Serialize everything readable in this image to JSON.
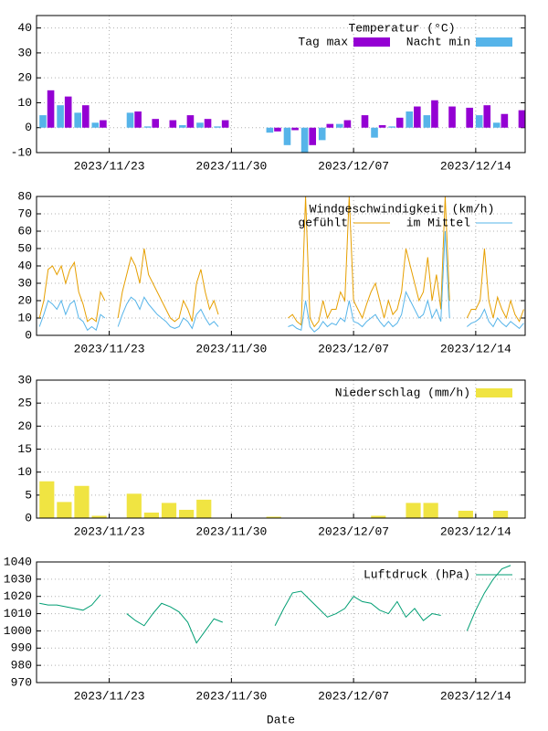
{
  "chart_data": [
    {
      "type": "bar",
      "title": "Temperatur (°C)",
      "x": [
        "2023/11/19",
        "2023/11/20",
        "2023/11/21",
        "2023/11/22",
        "2023/11/23",
        "2023/11/24",
        "2023/11/25",
        "2023/11/26",
        "2023/11/27",
        "2023/11/28",
        "2023/11/29",
        "2023/11/30",
        "2023/12/01",
        "2023/12/02",
        "2023/12/03",
        "2023/12/04",
        "2023/12/05",
        "2023/12/06",
        "2023/12/07",
        "2023/12/08",
        "2023/12/09",
        "2023/12/10",
        "2023/12/11",
        "2023/12/12",
        "2023/12/13",
        "2023/12/14",
        "2023/12/15",
        "2023/12/16"
      ],
      "series": [
        {
          "name": "Tag max",
          "color": "#9400d3",
          "values": [
            15,
            12.5,
            9,
            3,
            null,
            6.5,
            3.5,
            3,
            5,
            3.5,
            3,
            null,
            null,
            -1.5,
            -1,
            -7,
            1.5,
            3,
            5,
            1,
            4,
            8.5,
            11,
            8.5,
            8,
            9,
            5.5,
            7
          ]
        },
        {
          "name": "Nacht min",
          "color": "#56b4e9",
          "values": [
            5,
            9,
            6,
            2,
            null,
            6,
            0.5,
            0,
            1,
            2,
            0.5,
            null,
            null,
            -2,
            -7,
            -10,
            -5,
            1.5,
            0,
            -4,
            0.5,
            6.5,
            5,
            null,
            null,
            5,
            2,
            null
          ]
        }
      ],
      "xlim": [
        "2023/11/18 20:00",
        "2023/12/16 20:00"
      ],
      "xticks": [
        "2023/11/23",
        "2023/11/30",
        "2023/12/07",
        "2023/12/14"
      ],
      "ylim": [
        -10,
        45
      ],
      "yticks": [
        -10,
        0,
        10,
        20,
        30,
        40
      ],
      "grid": true,
      "legend": "top-right"
    },
    {
      "type": "line",
      "title": "Windgeschwindigkeit (km/h)",
      "x": [
        "2023/11/19 00:00",
        "2023/11/19 06:00",
        "2023/11/19 12:00",
        "2023/11/19 18:00",
        "2023/11/20 00:00",
        "2023/11/20 06:00",
        "2023/11/20 12:00",
        "2023/11/20 18:00",
        "2023/11/21 00:00",
        "2023/11/21 06:00",
        "2023/11/21 12:00",
        "2023/11/21 18:00",
        "2023/11/22 00:00",
        "2023/11/22 06:00",
        "2023/11/22 12:00",
        "2023/11/22 18:00",
        "2023/11/23 00:00",
        "2023/11/23 06:00",
        "2023/11/23 12:00",
        "2023/11/23 18:00",
        "2023/11/24 00:00",
        "2023/11/24 06:00",
        "2023/11/24 12:00",
        "2023/11/24 18:00",
        "2023/11/25 00:00",
        "2023/11/25 06:00",
        "2023/11/25 12:00",
        "2023/11/25 18:00",
        "2023/11/26 00:00",
        "2023/11/26 06:00",
        "2023/11/26 12:00",
        "2023/11/26 18:00",
        "2023/11/27 00:00",
        "2023/11/27 06:00",
        "2023/11/27 12:00",
        "2023/11/27 18:00",
        "2023/11/28 00:00",
        "2023/11/28 06:00",
        "2023/11/28 12:00",
        "2023/11/28 18:00",
        "2023/11/29 00:00",
        "2023/11/29 06:00",
        "2023/11/29 12:00",
        "2023/11/29 18:00",
        "2023/11/30 00:00",
        "2023/11/30 06:00",
        "2023/11/30 12:00",
        "2023/11/30 18:00",
        "2023/12/01 00:00",
        "2023/12/01 06:00",
        "2023/12/01 12:00",
        "2023/12/01 18:00",
        "2023/12/02 00:00",
        "2023/12/02 06:00",
        "2023/12/02 12:00",
        "2023/12/02 18:00",
        "2023/12/03 00:00",
        "2023/12/03 06:00",
        "2023/12/03 12:00",
        "2023/12/03 18:00",
        "2023/12/04 00:00",
        "2023/12/04 06:00",
        "2023/12/04 12:00",
        "2023/12/04 18:00",
        "2023/12/05 00:00",
        "2023/12/05 06:00",
        "2023/12/05 12:00",
        "2023/12/05 18:00",
        "2023/12/06 00:00",
        "2023/12/06 06:00",
        "2023/12/06 12:00",
        "2023/12/06 18:00",
        "2023/12/07 00:00",
        "2023/12/07 06:00",
        "2023/12/07 12:00",
        "2023/12/07 18:00",
        "2023/12/08 00:00",
        "2023/12/08 06:00",
        "2023/12/08 12:00",
        "2023/12/08 18:00",
        "2023/12/09 00:00",
        "2023/12/09 06:00",
        "2023/12/09 12:00",
        "2023/12/09 18:00",
        "2023/12/10 00:00",
        "2023/12/10 06:00",
        "2023/12/10 12:00",
        "2023/12/10 18:00",
        "2023/12/11 00:00",
        "2023/12/11 06:00",
        "2023/12/11 12:00",
        "2023/12/11 18:00",
        "2023/12/12 00:00",
        "2023/12/12 06:00",
        "2023/12/12 12:00",
        "2023/12/12 18:00",
        "2023/12/13 00:00",
        "2023/12/13 06:00",
        "2023/12/13 12:00",
        "2023/12/13 18:00",
        "2023/12/14 00:00",
        "2023/12/14 06:00",
        "2023/12/14 12:00",
        "2023/12/14 18:00",
        "2023/12/15 00:00",
        "2023/12/15 06:00",
        "2023/12/15 12:00",
        "2023/12/15 18:00",
        "2023/12/16 00:00",
        "2023/12/16 06:00",
        "2023/12/16 12:00",
        "2023/12/16 18:00"
      ],
      "series": [
        {
          "name": "gefühlt",
          "color": "#e69f00",
          "values": [
            10,
            20,
            38,
            40,
            35,
            40,
            30,
            38,
            42,
            25,
            18,
            8,
            10,
            8,
            25,
            20,
            null,
            null,
            10,
            25,
            35,
            45,
            40,
            30,
            50,
            35,
            30,
            25,
            20,
            15,
            10,
            8,
            10,
            20,
            15,
            8,
            30,
            38,
            25,
            15,
            20,
            12,
            null,
            null,
            null,
            null,
            null,
            null,
            null,
            null,
            null,
            null,
            null,
            null,
            null,
            null,
            null,
            10,
            12,
            8,
            6,
            80,
            10,
            5,
            8,
            20,
            10,
            15,
            15,
            25,
            20,
            80,
            20,
            15,
            10,
            18,
            25,
            30,
            20,
            10,
            20,
            12,
            15,
            25,
            50,
            40,
            30,
            20,
            25,
            45,
            20,
            35,
            15,
            80,
            20,
            null,
            null,
            null,
            10,
            15,
            15,
            20,
            50,
            20,
            10,
            22,
            15,
            10,
            20,
            12,
            8,
            15
          ]
        },
        {
          "name": "im Mittel",
          "color": "#56b4e9",
          "values": [
            5,
            12,
            20,
            18,
            15,
            20,
            12,
            18,
            20,
            10,
            8,
            3,
            5,
            3,
            12,
            10,
            null,
            null,
            5,
            12,
            18,
            22,
            20,
            15,
            22,
            18,
            15,
            12,
            10,
            8,
            5,
            4,
            5,
            10,
            8,
            4,
            12,
            15,
            10,
            6,
            8,
            5,
            null,
            null,
            null,
            null,
            null,
            null,
            null,
            null,
            null,
            null,
            null,
            null,
            null,
            null,
            null,
            5,
            6,
            4,
            3,
            20,
            5,
            2,
            4,
            8,
            5,
            7,
            6,
            10,
            8,
            20,
            8,
            7,
            5,
            8,
            10,
            12,
            8,
            5,
            8,
            5,
            7,
            12,
            25,
            20,
            15,
            10,
            12,
            20,
            10,
            15,
            8,
            60,
            10,
            null,
            null,
            null,
            5,
            7,
            8,
            10,
            15,
            8,
            5,
            10,
            7,
            5,
            8,
            6,
            4,
            7
          ]
        }
      ],
      "xlim": [
        "2023/11/18 20:00",
        "2023/12/16 20:00"
      ],
      "xticks": [
        "2023/11/23",
        "2023/11/30",
        "2023/12/07",
        "2023/12/14"
      ],
      "ylim": [
        0,
        80
      ],
      "yticks": [
        0,
        10,
        20,
        30,
        40,
        50,
        60,
        70,
        80
      ],
      "grid": true,
      "legend": "top-right"
    },
    {
      "type": "bar",
      "x": [
        "2023/11/19",
        "2023/11/20",
        "2023/11/21",
        "2023/11/22",
        "2023/11/23",
        "2023/11/24",
        "2023/11/25",
        "2023/11/26",
        "2023/11/27",
        "2023/11/28",
        "2023/11/29",
        "2023/11/30",
        "2023/12/01",
        "2023/12/02",
        "2023/12/03",
        "2023/12/04",
        "2023/12/05",
        "2023/12/06",
        "2023/12/07",
        "2023/12/08",
        "2023/12/09",
        "2023/12/10",
        "2023/12/11",
        "2023/12/12",
        "2023/12/13",
        "2023/12/14",
        "2023/12/15",
        "2023/12/16"
      ],
      "series": [
        {
          "name": "Niederschlag (mm/h)",
          "color": "#f0e442",
          "values": [
            8,
            3.5,
            7,
            0.5,
            null,
            5.3,
            1.2,
            3.3,
            1.8,
            4,
            null,
            null,
            null,
            0.3,
            null,
            null,
            null,
            null,
            null,
            0.5,
            null,
            3.3,
            3.3,
            null,
            1.6,
            null,
            1.6,
            null
          ]
        }
      ],
      "xlim": [
        "2023/11/18 20:00",
        "2023/12/16 20:00"
      ],
      "xticks": [
        "2023/11/23",
        "2023/11/30",
        "2023/12/07",
        "2023/12/14"
      ],
      "ylim": [
        0,
        30
      ],
      "yticks": [
        0,
        5,
        10,
        15,
        20,
        25,
        30
      ],
      "grid": true,
      "legend": "top-right"
    },
    {
      "type": "line",
      "xlabel": "Date",
      "x": [
        "2023/11/19 00:00",
        "2023/11/19 12:00",
        "2023/11/20 00:00",
        "2023/11/20 12:00",
        "2023/11/21 00:00",
        "2023/11/21 12:00",
        "2023/11/22 00:00",
        "2023/11/22 12:00",
        "2023/11/23 00:00",
        "2023/11/23 12:00",
        "2023/11/24 00:00",
        "2023/11/24 12:00",
        "2023/11/25 00:00",
        "2023/11/25 12:00",
        "2023/11/26 00:00",
        "2023/11/26 12:00",
        "2023/11/27 00:00",
        "2023/11/27 12:00",
        "2023/11/28 00:00",
        "2023/11/28 12:00",
        "2023/11/29 00:00",
        "2023/11/29 12:00",
        "2023/11/30 00:00",
        "2023/11/30 12:00",
        "2023/12/01 00:00",
        "2023/12/01 12:00",
        "2023/12/02 00:00",
        "2023/12/02 12:00",
        "2023/12/03 00:00",
        "2023/12/03 12:00",
        "2023/12/04 00:00",
        "2023/12/04 12:00",
        "2023/12/05 00:00",
        "2023/12/05 12:00",
        "2023/12/06 00:00",
        "2023/12/06 12:00",
        "2023/12/07 00:00",
        "2023/12/07 12:00",
        "2023/12/08 00:00",
        "2023/12/08 12:00",
        "2023/12/09 00:00",
        "2023/12/09 12:00",
        "2023/12/10 00:00",
        "2023/12/10 12:00",
        "2023/12/11 00:00",
        "2023/12/11 12:00",
        "2023/12/12 00:00",
        "2023/12/12 12:00",
        "2023/12/13 00:00",
        "2023/12/13 12:00",
        "2023/12/14 00:00",
        "2023/12/14 12:00",
        "2023/12/15 00:00",
        "2023/12/15 12:00",
        "2023/12/16 00:00",
        "2023/12/16 12:00"
      ],
      "series": [
        {
          "name": "Luftdruck (hPa)",
          "color": "#009e73",
          "values": [
            1016,
            1015,
            1015,
            1014,
            1013,
            1012,
            1015,
            1021,
            null,
            null,
            1010,
            1006,
            1003,
            1010,
            1016,
            1014,
            1011,
            1005,
            993,
            1000,
            1007,
            1005,
            null,
            null,
            null,
            null,
            null,
            1003,
            1013,
            1022,
            1023,
            1018,
            1013,
            1008,
            1010,
            1013,
            1020,
            1017,
            1016,
            1012,
            1010,
            1017,
            1008,
            1013,
            1006,
            1010,
            1009,
            null,
            null,
            1000,
            1012,
            1022,
            1030,
            1036,
            1038,
            null
          ]
        }
      ],
      "xlim": [
        "2023/11/18 20:00",
        "2023/12/16 20:00"
      ],
      "xticks": [
        "2023/11/23",
        "2023/11/30",
        "2023/12/07",
        "2023/12/14"
      ],
      "ylim": [
        970,
        1040
      ],
      "yticks": [
        970,
        980,
        990,
        1000,
        1010,
        1020,
        1030,
        1040
      ],
      "grid": true,
      "legend": "top-right"
    }
  ]
}
